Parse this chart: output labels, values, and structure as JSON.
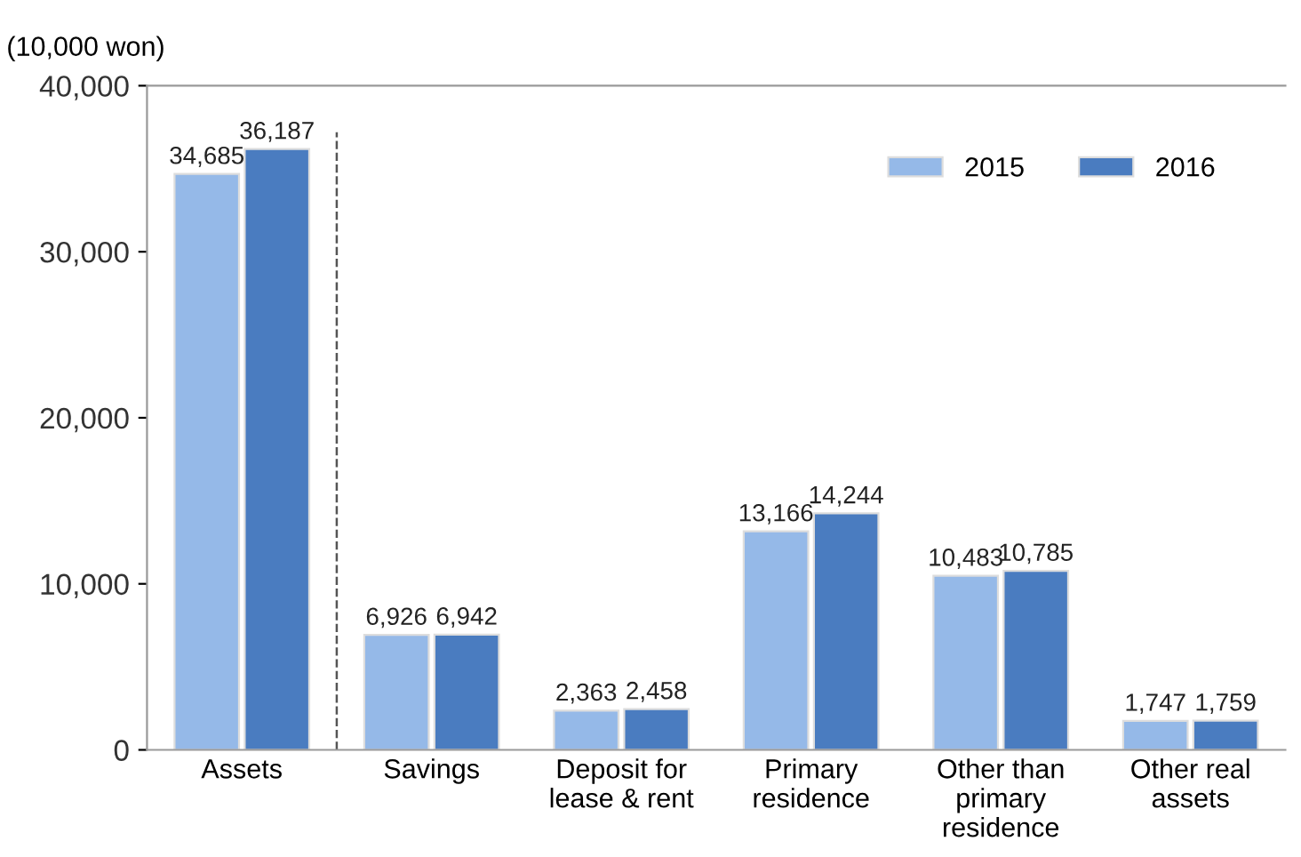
{
  "chart_data": {
    "type": "bar",
    "ylabel": "(10,000 won)",
    "categories": [
      "Assets",
      "Savings",
      "Deposit for\nlease & rent",
      "Primary\nresidence",
      "Other than\nprimary\nresidence",
      "Other real\nassets"
    ],
    "series": [
      {
        "name": "2015",
        "color": "#95b9e8",
        "values": [
          34685,
          6926,
          2363,
          13166,
          10483,
          1747
        ],
        "value_labels": [
          "34,685",
          "6,926",
          "2,363",
          "13,166",
          "10,483",
          "1,747"
        ]
      },
      {
        "name": "2016",
        "color": "#4a7cc0",
        "values": [
          36187,
          6942,
          2458,
          14244,
          10785,
          1759
        ],
        "value_labels": [
          "36,187",
          "6,942",
          "2,458",
          "14,244",
          "10,785",
          "1,759"
        ]
      }
    ],
    "ylim": [
      0,
      40000
    ],
    "yticks": [
      {
        "value": 0,
        "label": "0"
      },
      {
        "value": 10000,
        "label": "10,000"
      },
      {
        "value": 20000,
        "label": "20,000"
      },
      {
        "value": 30000,
        "label": "30,000"
      },
      {
        "value": 40000,
        "label": "40,000"
      }
    ],
    "grid": false,
    "legend": "top right"
  }
}
